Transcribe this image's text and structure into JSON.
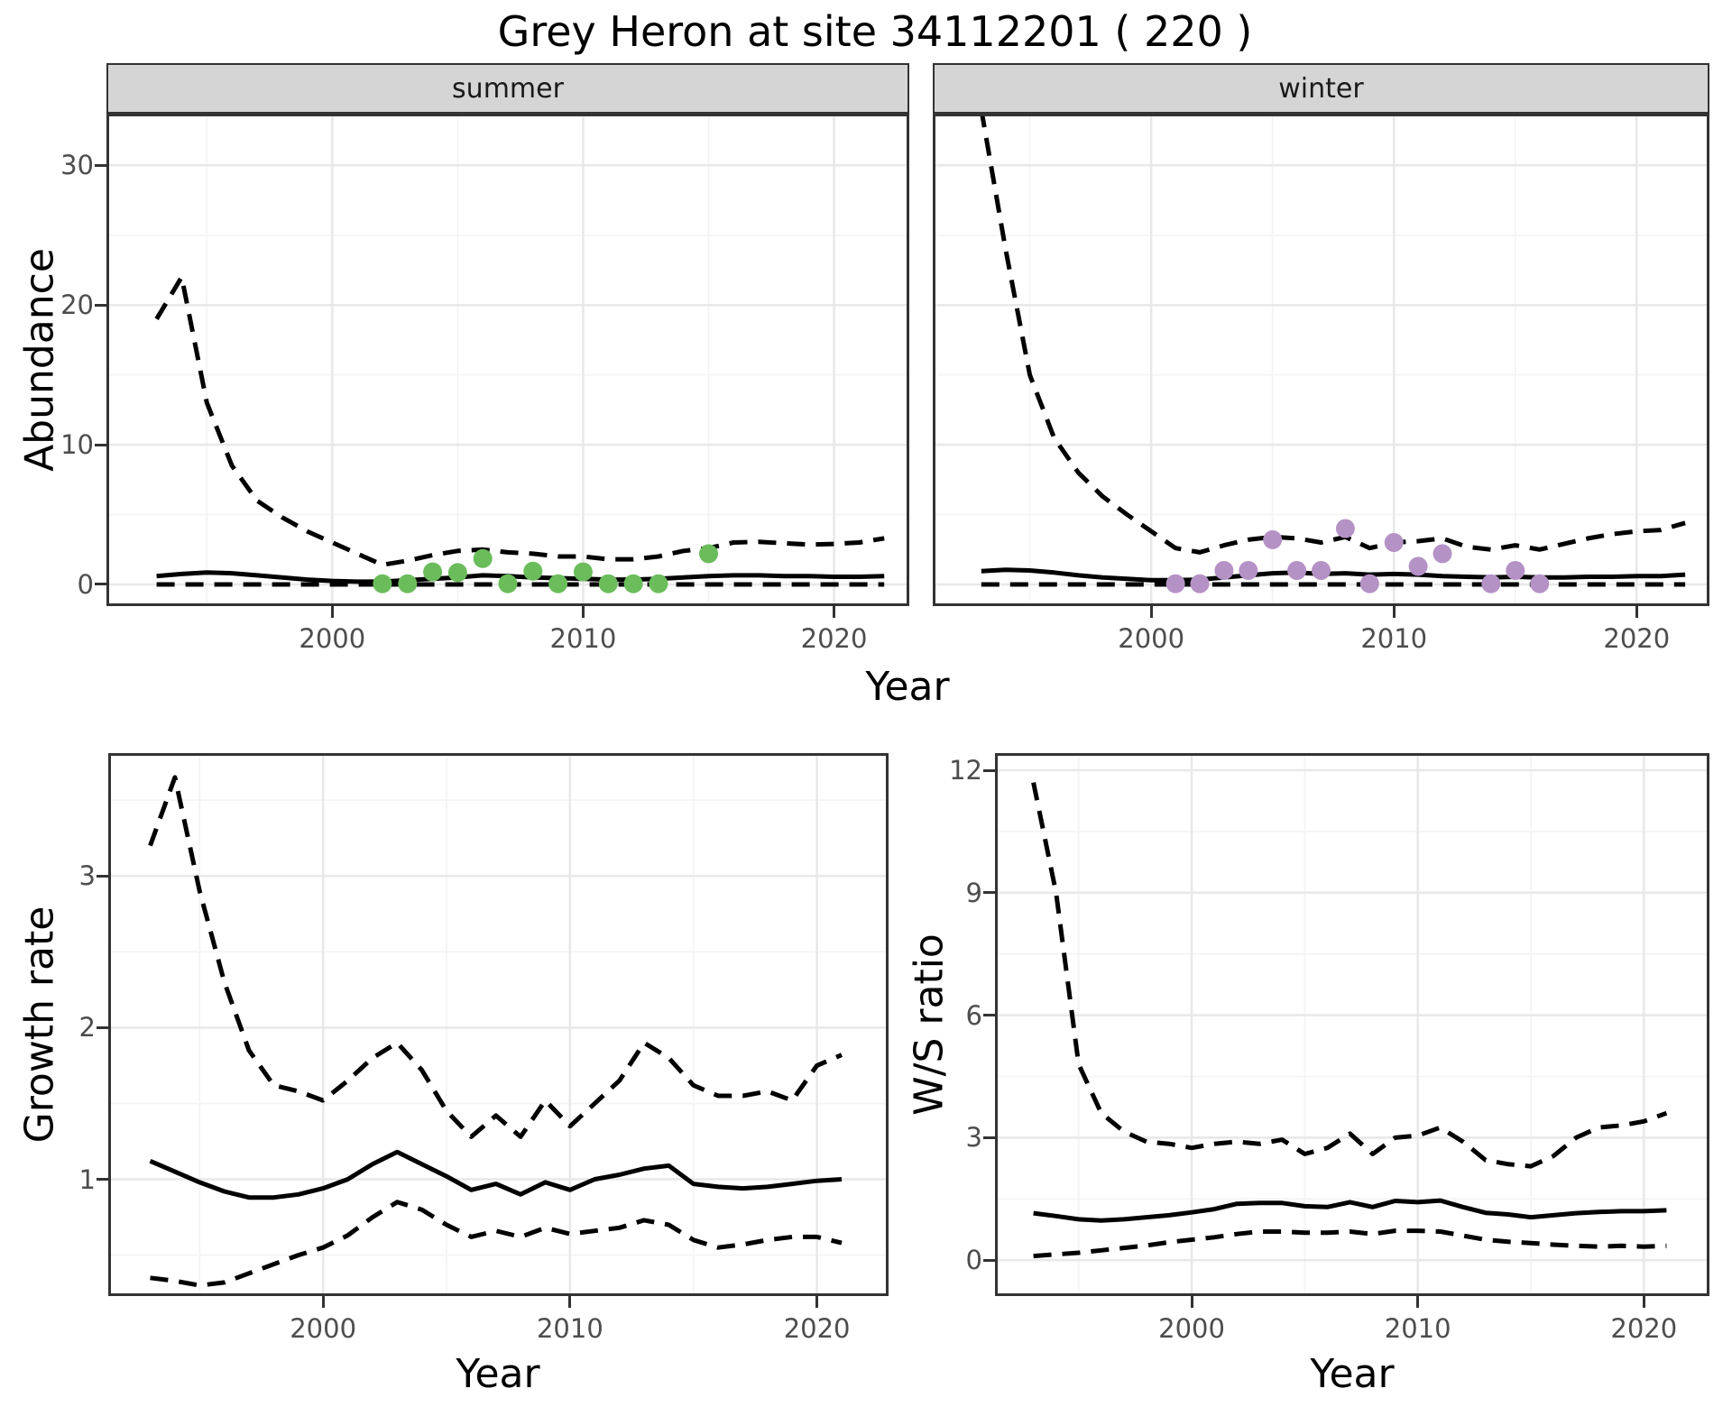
{
  "page": {
    "title": "Grey Heron at site 34112201 ( 220 )"
  },
  "colors": {
    "summer_point": "#6BBD5B",
    "winter_point": "#B592C6",
    "line": "#000000",
    "tick_label": "#4D4D4D",
    "strip_bg": "#D5D5D5",
    "panel_border": "#333333",
    "grid_major": "#E8E8E8",
    "grid_minor": "#F4F4F4"
  },
  "chart_data": [
    {
      "id": "abundance",
      "type": "line",
      "title": "",
      "xlabel": "Year",
      "ylabel": "Abundance",
      "x_ticks": [
        2000,
        2010,
        2020
      ],
      "y_ticks": [
        0,
        10,
        20,
        30
      ],
      "xlim": [
        1991,
        2023
      ],
      "ylim": [
        -1.55,
        33.7
      ],
      "grid": true,
      "legend": "none",
      "facets": [
        {
          "label": "summer",
          "point_color": "#6BBD5B",
          "years": [
            1993,
            1994,
            1995,
            1996,
            1997,
            1998,
            1999,
            2000,
            2001,
            2002,
            2003,
            2004,
            2005,
            2006,
            2007,
            2008,
            2009,
            2010,
            2011,
            2012,
            2013,
            2014,
            2015,
            2016,
            2017,
            2018,
            2019,
            2020,
            2021,
            2022
          ],
          "median": [
            0.6,
            0.75,
            0.85,
            0.8,
            0.65,
            0.5,
            0.35,
            0.25,
            0.2,
            0.2,
            0.3,
            0.4,
            0.5,
            0.65,
            0.6,
            0.5,
            0.45,
            0.4,
            0.35,
            0.35,
            0.4,
            0.5,
            0.6,
            0.65,
            0.65,
            0.6,
            0.6,
            0.55,
            0.55,
            0.6
          ],
          "lower_ci": [
            0,
            0,
            0,
            0,
            0,
            0,
            0,
            0,
            0,
            0,
            0,
            0,
            0,
            0,
            0,
            0,
            0,
            0,
            0,
            0,
            0,
            0,
            0,
            0,
            0,
            0,
            0,
            0,
            0,
            0
          ],
          "upper_ci": [
            19,
            22,
            13,
            8.5,
            6,
            4.8,
            3.8,
            3,
            2.2,
            1.4,
            1.7,
            2.1,
            2.4,
            2.5,
            2.3,
            2.2,
            2.0,
            2.0,
            1.8,
            1.8,
            2.0,
            2.4,
            2.6,
            3.0,
            3.05,
            2.95,
            2.85,
            2.9,
            3.0,
            3.3
          ],
          "obs_x": [
            2002,
            2003,
            2004,
            2005,
            2006,
            2007,
            2008,
            2009,
            2010,
            2011,
            2012,
            2013,
            2015
          ],
          "obs_y": [
            0.05,
            0.05,
            0.9,
            0.85,
            1.85,
            0.05,
            0.95,
            0.05,
            0.9,
            0.05,
            0.05,
            0.05,
            2.2
          ]
        },
        {
          "label": "winter",
          "point_color": "#B592C6",
          "years": [
            1993,
            1994,
            1995,
            1996,
            1997,
            1998,
            1999,
            2000,
            2001,
            2002,
            2003,
            2004,
            2005,
            2006,
            2007,
            2008,
            2009,
            2010,
            2011,
            2012,
            2013,
            2014,
            2015,
            2016,
            2017,
            2018,
            2019,
            2020,
            2021,
            2022
          ],
          "median": [
            0.95,
            1.05,
            1.0,
            0.85,
            0.65,
            0.5,
            0.4,
            0.3,
            0.3,
            0.35,
            0.5,
            0.65,
            0.8,
            0.85,
            0.75,
            0.8,
            0.7,
            0.75,
            0.7,
            0.6,
            0.55,
            0.5,
            0.55,
            0.5,
            0.5,
            0.55,
            0.55,
            0.6,
            0.6,
            0.7
          ],
          "lower_ci": [
            0,
            0,
            0,
            0,
            0,
            0,
            0,
            0,
            0,
            0,
            0,
            0,
            0,
            0,
            0,
            0,
            0,
            0,
            0,
            0,
            0,
            0,
            0,
            0,
            0,
            0,
            0,
            0,
            0,
            0
          ],
          "upper_ci": [
            34,
            24,
            15,
            10.5,
            8,
            6.3,
            5.0,
            3.8,
            2.6,
            2.3,
            2.8,
            3.2,
            3.4,
            3.3,
            3.0,
            3.4,
            2.6,
            3.0,
            3.1,
            3.3,
            2.7,
            2.5,
            2.8,
            2.5,
            2.9,
            3.3,
            3.6,
            3.8,
            3.9,
            4.4
          ],
          "obs_x": [
            2001,
            2002,
            2003,
            2004,
            2005,
            2006,
            2007,
            2008,
            2009,
            2010,
            2011,
            2012,
            2014,
            2015,
            2016
          ],
          "obs_y": [
            0.05,
            0.05,
            1.0,
            1.0,
            3.2,
            1.0,
            1.0,
            4.0,
            0.05,
            3.0,
            1.3,
            2.2,
            0.05,
            1.0,
            0.05
          ]
        }
      ]
    },
    {
      "id": "growth_rate",
      "type": "line",
      "title": "",
      "xlabel": "Year",
      "ylabel": "Growth rate",
      "x_ticks": [
        2000,
        2010,
        2020
      ],
      "y_ticks": [
        1,
        2,
        3
      ],
      "xlim": [
        1991.3,
        2022.9
      ],
      "ylim": [
        0.23,
        3.81
      ],
      "grid": true,
      "legend": "none",
      "years": [
        1993,
        1994,
        1995,
        1996,
        1997,
        1998,
        1999,
        2000,
        2001,
        2002,
        2003,
        2004,
        2005,
        2006,
        2007,
        2008,
        2009,
        2010,
        2011,
        2012,
        2013,
        2014,
        2015,
        2016,
        2017,
        2018,
        2019,
        2020,
        2021
      ],
      "median": [
        1.12,
        1.05,
        0.98,
        0.92,
        0.88,
        0.88,
        0.9,
        0.94,
        1.0,
        1.1,
        1.18,
        1.1,
        1.02,
        0.93,
        0.97,
        0.9,
        0.98,
        0.93,
        1.0,
        1.03,
        1.07,
        1.09,
        0.97,
        0.95,
        0.94,
        0.95,
        0.97,
        0.99,
        1.0
      ],
      "lower_ci": [
        0.35,
        0.33,
        0.3,
        0.32,
        0.38,
        0.44,
        0.5,
        0.55,
        0.63,
        0.75,
        0.85,
        0.8,
        0.7,
        0.62,
        0.66,
        0.62,
        0.68,
        0.64,
        0.66,
        0.68,
        0.73,
        0.7,
        0.6,
        0.55,
        0.57,
        0.6,
        0.62,
        0.62,
        0.58
      ],
      "upper_ci": [
        3.2,
        3.65,
        2.9,
        2.3,
        1.85,
        1.62,
        1.58,
        1.52,
        1.65,
        1.8,
        1.9,
        1.72,
        1.45,
        1.28,
        1.42,
        1.28,
        1.52,
        1.35,
        1.5,
        1.65,
        1.9,
        1.8,
        1.62,
        1.55,
        1.55,
        1.58,
        1.52,
        1.75,
        1.82
      ]
    },
    {
      "id": "ws_ratio",
      "type": "line",
      "title": "",
      "xlabel": "Year",
      "ylabel": "W/S ratio",
      "x_ticks": [
        2000,
        2010,
        2020
      ],
      "y_ticks": [
        0,
        3,
        6,
        9,
        12
      ],
      "xlim": [
        1991.3,
        2022.9
      ],
      "ylim": [
        -0.88,
        12.42
      ],
      "grid": true,
      "legend": "none",
      "years": [
        1993,
        1994,
        1995,
        1996,
        1997,
        1998,
        1999,
        2000,
        2001,
        2002,
        2003,
        2004,
        2005,
        2006,
        2007,
        2008,
        2009,
        2010,
        2011,
        2012,
        2013,
        2014,
        2015,
        2016,
        2017,
        2018,
        2019,
        2020,
        2021
      ],
      "median": [
        1.15,
        1.08,
        1.0,
        0.97,
        1.0,
        1.05,
        1.1,
        1.17,
        1.25,
        1.38,
        1.4,
        1.4,
        1.32,
        1.3,
        1.42,
        1.3,
        1.45,
        1.42,
        1.46,
        1.3,
        1.16,
        1.12,
        1.05,
        1.1,
        1.15,
        1.18,
        1.2,
        1.2,
        1.22
      ],
      "lower_ci": [
        0.1,
        0.14,
        0.18,
        0.24,
        0.3,
        0.36,
        0.44,
        0.5,
        0.56,
        0.64,
        0.7,
        0.7,
        0.67,
        0.67,
        0.7,
        0.64,
        0.72,
        0.72,
        0.7,
        0.6,
        0.5,
        0.45,
        0.42,
        0.38,
        0.35,
        0.33,
        0.35,
        0.33,
        0.35
      ],
      "upper_ci": [
        11.7,
        9.0,
        4.8,
        3.6,
        3.15,
        2.9,
        2.85,
        2.75,
        2.85,
        2.9,
        2.85,
        2.95,
        2.6,
        2.75,
        3.1,
        2.6,
        3.0,
        3.05,
        3.25,
        2.9,
        2.45,
        2.35,
        2.3,
        2.55,
        3.0,
        3.25,
        3.3,
        3.4,
        3.6
      ]
    }
  ]
}
